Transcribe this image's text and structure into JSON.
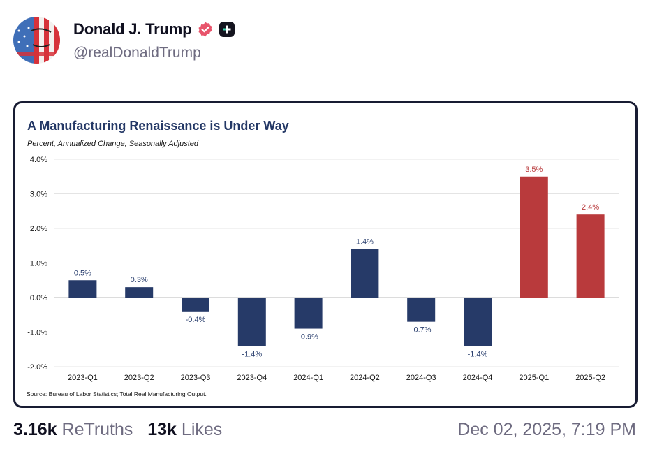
{
  "post": {
    "author_name": "Donald J. Trump",
    "handle": "@realDonaldTrump",
    "verified_icon": "verified-badge-icon",
    "plus_icon": "plus-badge-icon",
    "retruths_count": "3.16k",
    "retruths_label": "ReTruths",
    "likes_count": "13k",
    "likes_label": "Likes",
    "timestamp": "Dec 02, 2025, 7:19 PM"
  },
  "colors": {
    "navy_bar": "#263a68",
    "red_bar": "#b93a3c",
    "title": "#243866",
    "verified": "#e8546b"
  },
  "chart_data": {
    "type": "bar",
    "title": "A Manufacturing Renaissance is Under Way",
    "subtitle": "Percent, Annualized Change, Seasonally Adjusted",
    "source": "Source: Bureau of Labor Statistics; Total Real Manufacturing Output.",
    "xlabel": "",
    "ylabel": "",
    "ylim": [
      -2.0,
      4.0
    ],
    "yticks": [
      4.0,
      3.0,
      2.0,
      1.0,
      0.0,
      -1.0,
      -2.0
    ],
    "ytick_labels": [
      "4.0%",
      "3.0%",
      "2.0%",
      "1.0%",
      "0.0%",
      "-1.0%",
      "-2.0%"
    ],
    "grid": true,
    "legend": "none",
    "categories": [
      "2023-Q1",
      "2023-Q2",
      "2023-Q3",
      "2023-Q4",
      "2024-Q1",
      "2024-Q2",
      "2024-Q3",
      "2024-Q4",
      "2025-Q1",
      "2025-Q2"
    ],
    "values": [
      0.5,
      0.3,
      -0.4,
      -1.4,
      -0.9,
      1.4,
      -0.7,
      -1.4,
      3.5,
      2.4
    ],
    "data_labels": [
      "0.5%",
      "0.3%",
      "-0.4%",
      "-1.4%",
      "-0.9%",
      "1.4%",
      "-0.7%",
      "-1.4%",
      "3.5%",
      "2.4%"
    ],
    "bar_colors": [
      "navy",
      "navy",
      "navy",
      "navy",
      "navy",
      "navy",
      "navy",
      "navy",
      "red",
      "red"
    ]
  }
}
